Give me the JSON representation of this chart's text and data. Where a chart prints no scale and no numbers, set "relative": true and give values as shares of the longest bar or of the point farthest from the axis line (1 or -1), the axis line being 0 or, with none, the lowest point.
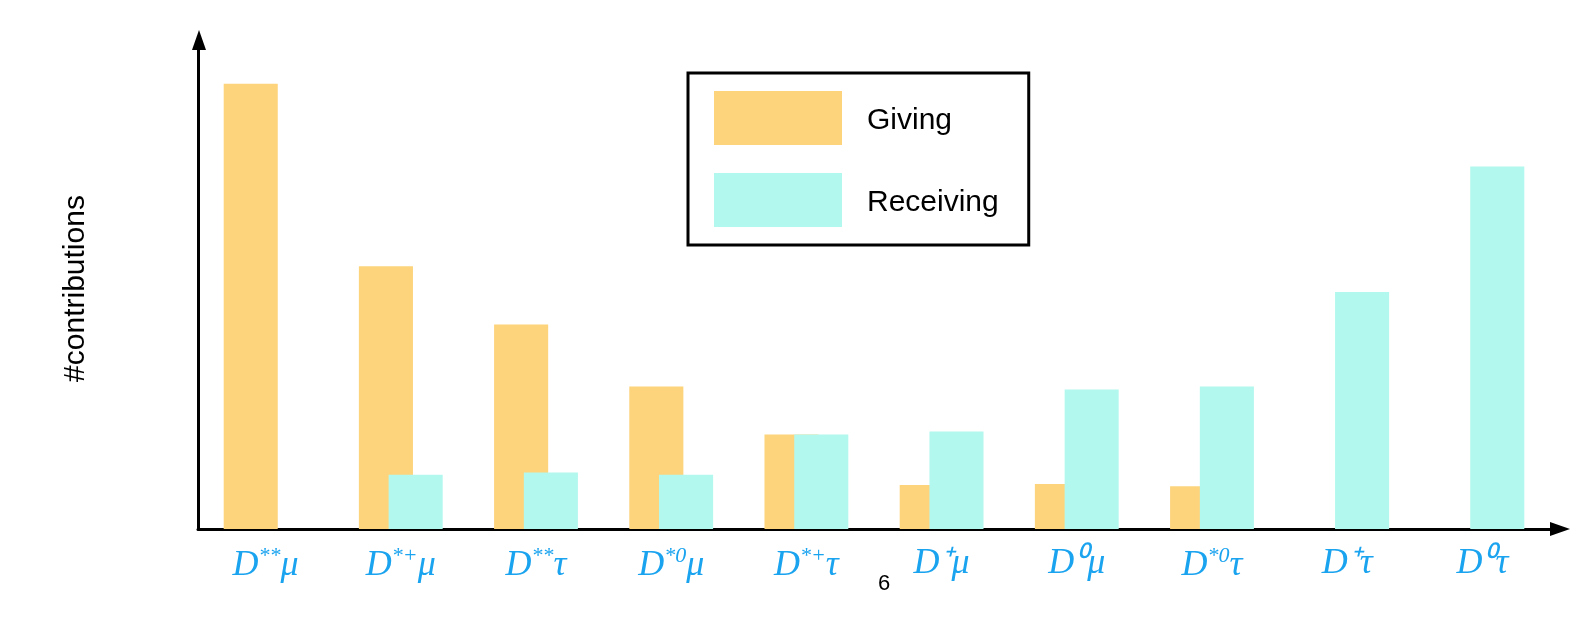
{
  "chart_data": {
    "type": "bar",
    "relative": true,
    "ylabel": "#contributions",
    "categories": [
      "D$^{**}$μ",
      "D$^{*+}$μ",
      "D$^{**}$τ",
      "D$^{*0}$μ",
      "D$^{*+}$τ",
      "D⁺μ",
      "D⁰μ",
      "D$^{*0}$τ",
      "D⁺τ",
      "D⁰τ"
    ],
    "series": [
      {
        "name": "Giving",
        "color": "#fdd47c",
        "values": [
          1.0,
          0.59,
          0.459,
          0.32,
          0.212,
          0.099,
          0.101,
          0.096,
          0,
          0
        ]
      },
      {
        "name": "Receiving",
        "color": "#b3f8ee",
        "values": [
          0,
          0.122,
          0.127,
          0.122,
          0.212,
          0.219,
          0.313,
          0.32,
          0.532,
          0.814
        ]
      }
    ],
    "legend": "top",
    "grid": false,
    "annotations": [
      "6"
    ]
  }
}
